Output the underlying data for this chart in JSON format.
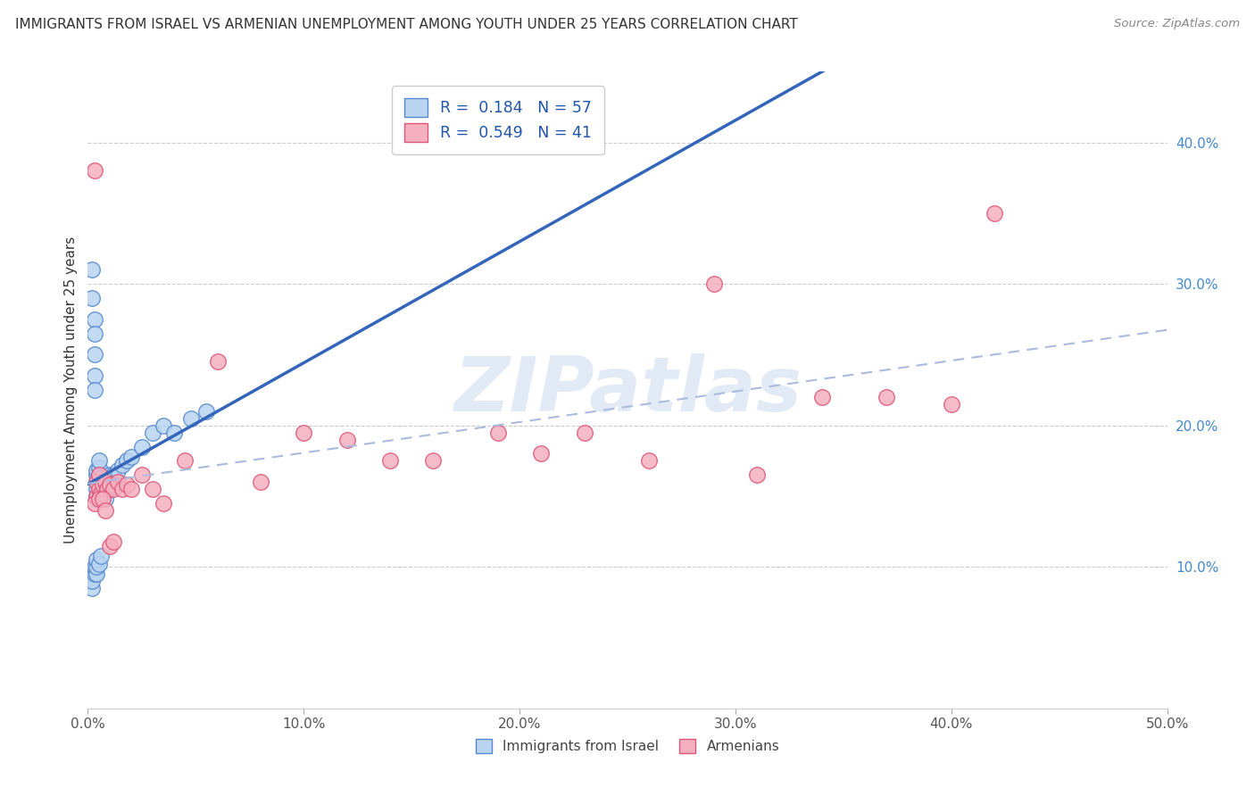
{
  "title": "IMMIGRANTS FROM ISRAEL VS ARMENIAN UNEMPLOYMENT AMONG YOUTH UNDER 25 YEARS CORRELATION CHART",
  "source": "Source: ZipAtlas.com",
  "ylabel": "Unemployment Among Youth under 25 years",
  "xlim": [
    0.0,
    0.5
  ],
  "ylim": [
    0.0,
    0.45
  ],
  "xticks": [
    0.0,
    0.1,
    0.2,
    0.3,
    0.4,
    0.5
  ],
  "xticklabels": [
    "0.0%",
    "10.0%",
    "20.0%",
    "30.0%",
    "40.0%",
    "50.0%"
  ],
  "yticks": [
    0.1,
    0.2,
    0.3,
    0.4
  ],
  "yticklabels": [
    "10.0%",
    "20.0%",
    "30.0%",
    "40.0%"
  ],
  "r_israel": 0.184,
  "n_israel": 57,
  "r_armenian": 0.549,
  "n_armenian": 41,
  "legend_label1": "Immigrants from Israel",
  "legend_label2": "Armenians",
  "israel_dot_color": "#b8d4f0",
  "israel_dot_edge": "#5588cc",
  "armenian_dot_color": "#f5b0c0",
  "armenian_dot_edge": "#dd5577",
  "israel_line_color": "#3366bb",
  "armenian_line_color": "#dd4477",
  "armenian_trend_color": "#aabbdd",
  "rn_color": "#2255aa",
  "watermark": "ZIPatlas",
  "israel_x": [
    0.002,
    0.002,
    0.003,
    0.003,
    0.003,
    0.003,
    0.003,
    0.004,
    0.004,
    0.004,
    0.004,
    0.004,
    0.004,
    0.005,
    0.005,
    0.005,
    0.005,
    0.005,
    0.005,
    0.005,
    0.005,
    0.005,
    0.006,
    0.006,
    0.006,
    0.006,
    0.006,
    0.007,
    0.007,
    0.007,
    0.007,
    0.008,
    0.008,
    0.009,
    0.01,
    0.01,
    0.01,
    0.012,
    0.014,
    0.016,
    0.018,
    0.02,
    0.025,
    0.03,
    0.035,
    0.04,
    0.048,
    0.055,
    0.002,
    0.002,
    0.003,
    0.003,
    0.004,
    0.004,
    0.004,
    0.005,
    0.006
  ],
  "israel_y": [
    0.31,
    0.29,
    0.275,
    0.265,
    0.25,
    0.235,
    0.225,
    0.15,
    0.148,
    0.155,
    0.16,
    0.165,
    0.168,
    0.15,
    0.152,
    0.155,
    0.157,
    0.16,
    0.162,
    0.165,
    0.17,
    0.175,
    0.15,
    0.153,
    0.155,
    0.158,
    0.163,
    0.15,
    0.152,
    0.155,
    0.16,
    0.148,
    0.155,
    0.155,
    0.155,
    0.16,
    0.165,
    0.165,
    0.168,
    0.172,
    0.175,
    0.178,
    0.185,
    0.195,
    0.2,
    0.195,
    0.205,
    0.21,
    0.085,
    0.09,
    0.095,
    0.1,
    0.095,
    0.1,
    0.105,
    0.102,
    0.108
  ],
  "armenian_x": [
    0.003,
    0.004,
    0.004,
    0.005,
    0.005,
    0.006,
    0.007,
    0.008,
    0.009,
    0.01,
    0.012,
    0.014,
    0.016,
    0.018,
    0.02,
    0.025,
    0.03,
    0.035,
    0.045,
    0.06,
    0.08,
    0.1,
    0.12,
    0.14,
    0.16,
    0.19,
    0.21,
    0.23,
    0.26,
    0.29,
    0.31,
    0.34,
    0.37,
    0.4,
    0.42,
    0.003,
    0.005,
    0.007,
    0.008,
    0.01,
    0.012
  ],
  "armenian_y": [
    0.38,
    0.15,
    0.16,
    0.155,
    0.165,
    0.152,
    0.158,
    0.16,
    0.155,
    0.158,
    0.155,
    0.16,
    0.155,
    0.158,
    0.155,
    0.165,
    0.155,
    0.145,
    0.175,
    0.245,
    0.16,
    0.195,
    0.19,
    0.175,
    0.175,
    0.195,
    0.18,
    0.195,
    0.175,
    0.3,
    0.165,
    0.22,
    0.22,
    0.215,
    0.35,
    0.145,
    0.148,
    0.148,
    0.14,
    0.115,
    0.118
  ]
}
